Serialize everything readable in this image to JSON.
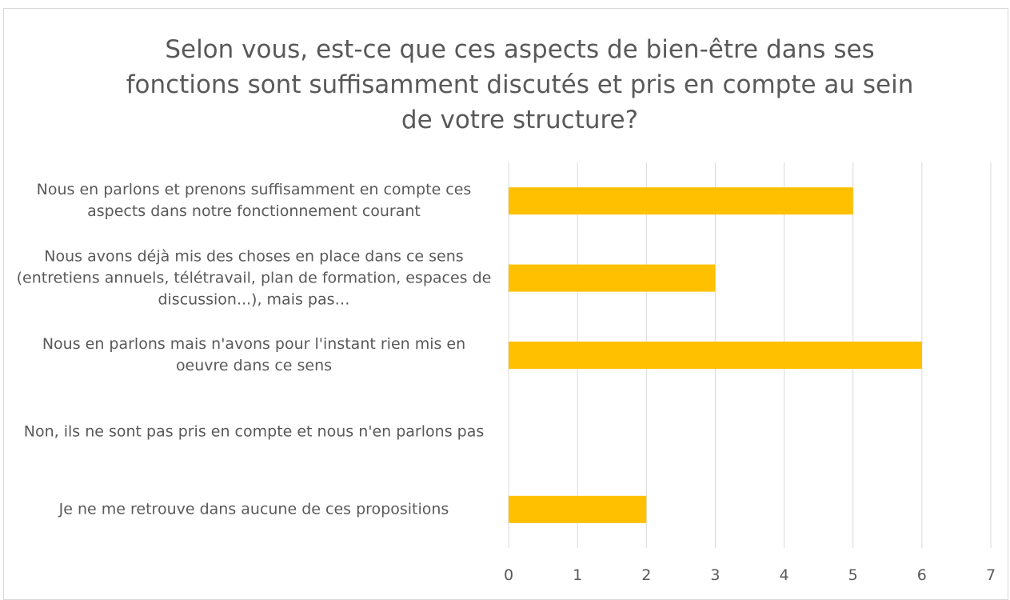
{
  "chart_data": {
    "type": "barh",
    "title": "Selon vous, est-ce que ces aspects de bien-être dans ses fonctions sont suffisamment discutés et pris en compte au sein de votre structure?",
    "categories": [
      "Nous en parlons et prenons suffisamment en compte ces aspects dans notre fonctionnement courant",
      "Nous avons déjà mis des choses en place dans ce sens (entretiens annuels, télétravail, plan de formation, espaces de discussion...), mais pas…",
      "Nous en parlons mais n'avons pour l'instant rien mis en oeuvre dans ce sens",
      "Non, ils ne sont pas pris en compte et nous n'en parlons pas",
      "Je ne me retrouve dans aucune de ces propositions"
    ],
    "values": [
      5,
      3,
      6,
      0,
      2
    ],
    "color": "#ffc000",
    "xlim": [
      0,
      7
    ],
    "xticks": [
      0,
      1,
      2,
      3,
      4,
      5,
      6,
      7
    ],
    "grid": true
  }
}
